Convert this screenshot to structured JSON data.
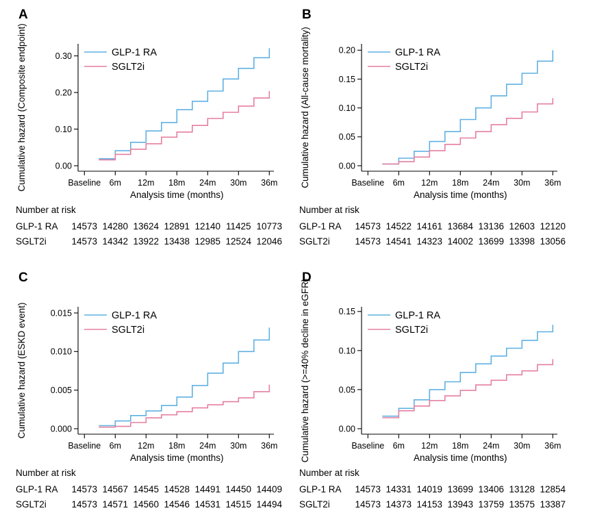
{
  "figure": {
    "background": "#ffffff",
    "axis_color": "#000000",
    "text_color": "#000000",
    "colors": {
      "glp1_ra": "#5fb0e2",
      "sglt2i": "#e57f9f"
    },
    "xlabel": "Analysis time (months)",
    "x_tick_labels": [
      "Baseline",
      "6m",
      "12m",
      "18m",
      "24m",
      "30m",
      "36m"
    ],
    "x_tick_months": [
      0,
      6,
      12,
      18,
      24,
      30,
      36
    ],
    "start_month": 2.8,
    "step_months": [
      6,
      9,
      12,
      15,
      18,
      21,
      24,
      27,
      30,
      33,
      36
    ],
    "risk_header": "Number at risk",
    "legend_position": "top-left-inside",
    "grid": "off"
  },
  "chart_data": [
    {
      "panel": "A",
      "type": "line",
      "subtype": "cumulative-hazard-step",
      "ylabel": "Cumulative hazard (Composite endpoint)",
      "yticks": [
        0,
        0.1,
        0.2,
        0.3
      ],
      "ytick_labels": [
        "0.00",
        "0.10",
        "0.20",
        "0.30"
      ],
      "ylim": [
        0,
        0.333
      ],
      "series": [
        {
          "name": "GLP-1 RA",
          "color": "#5fb0e2",
          "plateaus": [
            0.019,
            0.041,
            0.064,
            0.095,
            0.118,
            0.153,
            0.176,
            0.204,
            0.237,
            0.266,
            0.295
          ],
          "end_value": 0.321
        },
        {
          "name": "SGLT2i",
          "color": "#e57f9f",
          "plateaus": [
            0.016,
            0.031,
            0.045,
            0.06,
            0.078,
            0.092,
            0.11,
            0.129,
            0.146,
            0.163,
            0.185
          ],
          "end_value": 0.204
        }
      ],
      "number_at_risk": [
        {
          "label": "GLP-1 RA",
          "counts": [
            "14573",
            "14280",
            "13624",
            "12891",
            "12140",
            "11425",
            "10773"
          ]
        },
        {
          "label": "SGLT2i",
          "counts": [
            "14573",
            "14342",
            "13922",
            "13438",
            "12985",
            "12524",
            "12046"
          ]
        }
      ]
    },
    {
      "panel": "B",
      "type": "line",
      "subtype": "cumulative-hazard-step",
      "ylabel": "Cumulative hazard (All-cause mortality)",
      "yticks": [
        0,
        0.05,
        0.1,
        0.15,
        0.2
      ],
      "ytick_labels": [
        "0.00",
        "0.05",
        "0.10",
        "0.15",
        "0.20"
      ],
      "ylim": [
        0,
        0.211
      ],
      "series": [
        {
          "name": "GLP-1 RA",
          "color": "#5fb0e2",
          "plateaus": [
            0.003,
            0.013,
            0.025,
            0.042,
            0.059,
            0.08,
            0.1,
            0.121,
            0.141,
            0.16,
            0.181
          ],
          "end_value": 0.2
        },
        {
          "name": "SGLT2i",
          "color": "#e57f9f",
          "plateaus": [
            0.003,
            0.007,
            0.015,
            0.026,
            0.037,
            0.048,
            0.059,
            0.071,
            0.082,
            0.093,
            0.107
          ],
          "end_value": 0.117
        }
      ],
      "number_at_risk": [
        {
          "label": "GLP-1 RA",
          "counts": [
            "14573",
            "14522",
            "14161",
            "13684",
            "13136",
            "12603",
            "12120"
          ]
        },
        {
          "label": "SGLT2i",
          "counts": [
            "14573",
            "14541",
            "14323",
            "14002",
            "13699",
            "13398",
            "13056"
          ]
        }
      ]
    },
    {
      "panel": "C",
      "type": "line",
      "subtype": "cumulative-hazard-step",
      "ylabel": "Cumulative hazard (ESKD event)",
      "yticks": [
        0,
        0.005,
        0.01,
        0.015
      ],
      "ytick_labels": [
        "0.000",
        "0.005",
        "0.010",
        "0.015"
      ],
      "ylim": [
        0,
        0.0158
      ],
      "series": [
        {
          "name": "GLP-1 RA",
          "color": "#5fb0e2",
          "plateaus": [
            0.0004,
            0.001,
            0.0017,
            0.0023,
            0.003,
            0.0041,
            0.0056,
            0.0072,
            0.0085,
            0.01,
            0.0115
          ],
          "end_value": 0.0131
        },
        {
          "name": "SGLT2i",
          "color": "#e57f9f",
          "plateaus": [
            0.0002,
            0.0003,
            0.0008,
            0.0014,
            0.0018,
            0.0022,
            0.0027,
            0.0031,
            0.0035,
            0.004,
            0.0048
          ],
          "end_value": 0.0057
        }
      ],
      "number_at_risk": [
        {
          "label": "GLP-1 RA",
          "counts": [
            "14573",
            "14567",
            "14545",
            "14528",
            "14491",
            "14450",
            "14409"
          ]
        },
        {
          "label": "SGLT2i",
          "counts": [
            "14573",
            "14571",
            "14560",
            "14546",
            "14531",
            "14515",
            "14494"
          ]
        }
      ]
    },
    {
      "panel": "D",
      "type": "line",
      "subtype": "cumulative-hazard-step",
      "ylabel": "Cumulative hazard (>=40% decline in eGFR)",
      "yticks": [
        0,
        0.05,
        0.1,
        0.15
      ],
      "ytick_labels": [
        "0.00",
        "0.05",
        "0.10",
        "0.15"
      ],
      "ylim": [
        0,
        0.156
      ],
      "series": [
        {
          "name": "GLP-1 RA",
          "color": "#5fb0e2",
          "plateaus": [
            0.016,
            0.026,
            0.037,
            0.05,
            0.06,
            0.072,
            0.083,
            0.093,
            0.103,
            0.113,
            0.124
          ],
          "end_value": 0.133
        },
        {
          "name": "SGLT2i",
          "color": "#e57f9f",
          "plateaus": [
            0.014,
            0.023,
            0.029,
            0.036,
            0.042,
            0.049,
            0.056,
            0.062,
            0.069,
            0.074,
            0.082
          ],
          "end_value": 0.089
        }
      ],
      "number_at_risk": [
        {
          "label": "GLP-1 RA",
          "counts": [
            "14573",
            "14331",
            "14019",
            "13699",
            "13406",
            "13128",
            "12854"
          ]
        },
        {
          "label": "SGLT2i",
          "counts": [
            "14573",
            "14373",
            "14153",
            "13943",
            "13759",
            "13575",
            "13387"
          ]
        }
      ]
    }
  ]
}
